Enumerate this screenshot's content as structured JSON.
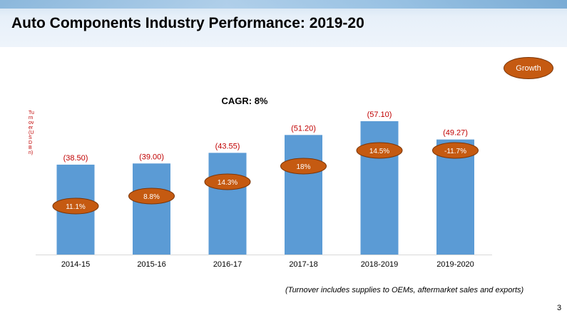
{
  "slide": {
    "title": "Auto Components Industry Performance: 2019-20",
    "growth_badge": "Growth",
    "footnote": "(Turnover includes supplies to OEMs, aftermarket sales and exports)",
    "page_number": "3"
  },
  "colors": {
    "bar": "#5b9bd5",
    "growth_oval": "#c55a11",
    "value_label": "#c00000",
    "axis": "#d9d9d9"
  },
  "chart_data": {
    "type": "bar",
    "title": "CAGR: 8%",
    "xlabel": "",
    "ylabel": "Turnover (USD Bn)",
    "ylim": [
      0,
      60
    ],
    "categories": [
      "2014-15",
      "2015-16",
      "2016-17",
      "2017-18",
      "2018-2019",
      "2019-2020"
    ],
    "values": [
      38.5,
      39.0,
      43.55,
      51.2,
      57.1,
      49.27
    ],
    "value_labels": [
      "(38.50)",
      "(39.00)",
      "(43.55)",
      "(51.20)",
      "(57.10)",
      "(49.27)"
    ],
    "growth_labels": [
      "11.1%",
      "8.8%",
      "14.3%",
      "18%",
      "14.5%",
      "-11.7%"
    ]
  }
}
